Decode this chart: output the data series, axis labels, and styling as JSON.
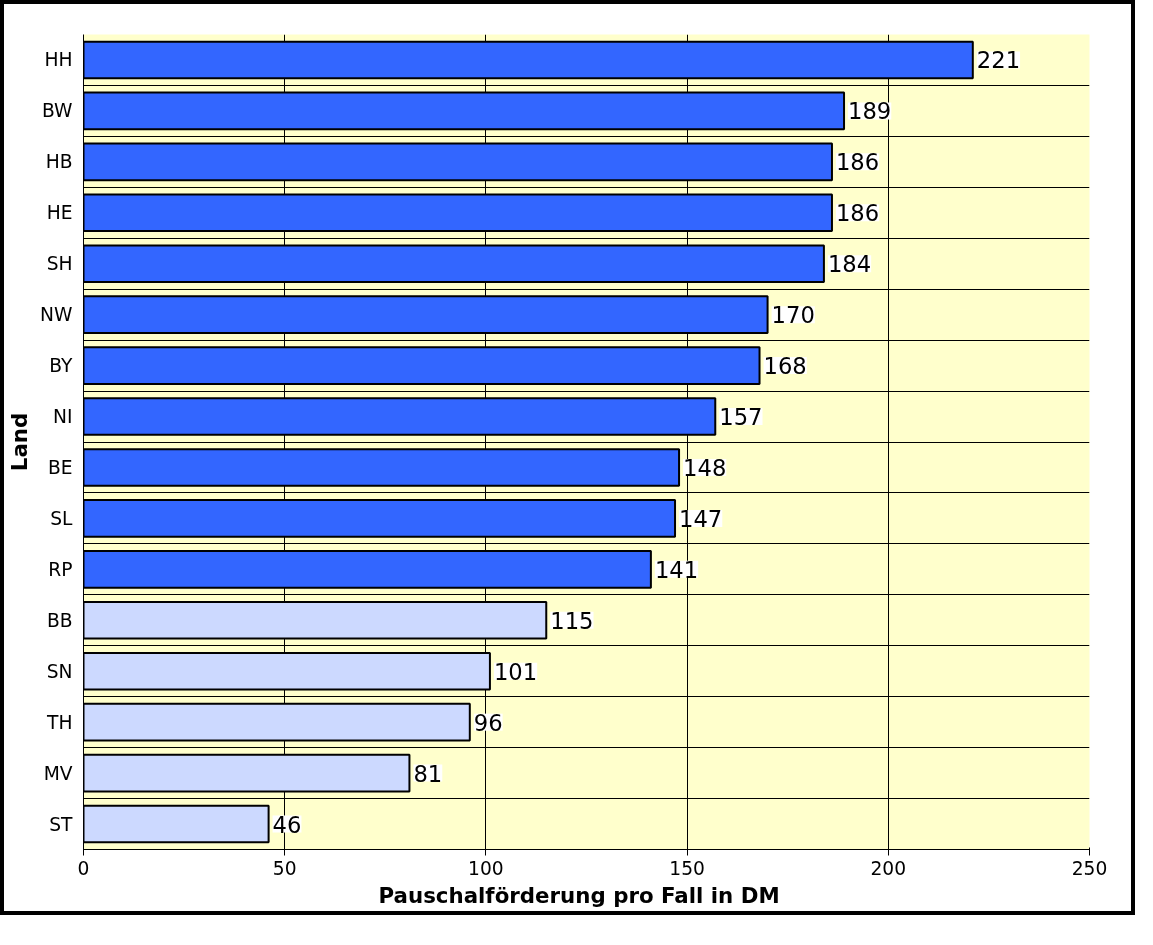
{
  "chart_data": {
    "type": "bar",
    "orientation": "horizontal",
    "xlabel": "Pauschalförderung  pro Fall  in DM",
    "ylabel": "Land",
    "categories": [
      "HH",
      "BW",
      "HB",
      "HE",
      "SH",
      "NW",
      "BY",
      "NI",
      "BE",
      "SL",
      "RP",
      "BB",
      "SN",
      "TH",
      "MV",
      "ST"
    ],
    "values": [
      221,
      189,
      186,
      186,
      184,
      170,
      168,
      157,
      148,
      147,
      141,
      115,
      101,
      96,
      81,
      46
    ],
    "colors": [
      "#3366ff",
      "#3366ff",
      "#3366ff",
      "#3366ff",
      "#3366ff",
      "#3366ff",
      "#3366ff",
      "#3366ff",
      "#3366ff",
      "#3366ff",
      "#3366ff",
      "#ccd9ff",
      "#ccd9ff",
      "#ccd9ff",
      "#ccd9ff",
      "#ccd9ff"
    ],
    "xlim": [
      0,
      250
    ],
    "xticks": [
      0,
      50,
      100,
      150,
      200,
      250
    ],
    "grid": true,
    "data_labels": true
  }
}
